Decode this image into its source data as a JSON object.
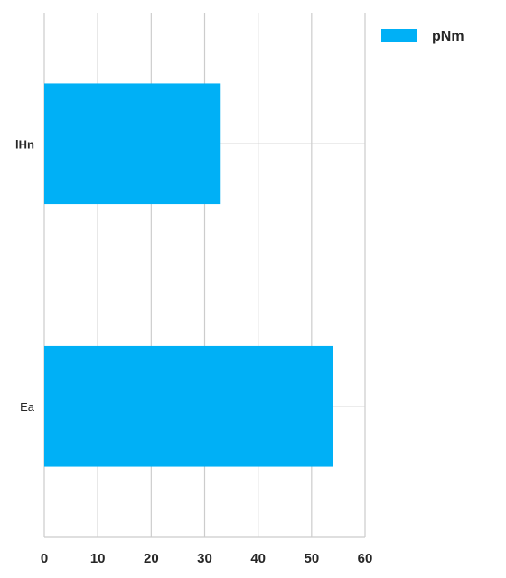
{
  "chart_data": {
    "type": "bar",
    "orientation": "horizontal",
    "categories": [
      "lHn",
      "Ea"
    ],
    "series": [
      {
        "name": "pNm",
        "values": [
          33,
          54
        ],
        "color": "#00b0f6"
      }
    ],
    "xlim": [
      0,
      60
    ],
    "x_ticks": [
      0,
      10,
      20,
      30,
      40,
      50,
      60
    ],
    "grid": true,
    "legend_position": "top-right",
    "gridline_color": "#cccccc"
  }
}
